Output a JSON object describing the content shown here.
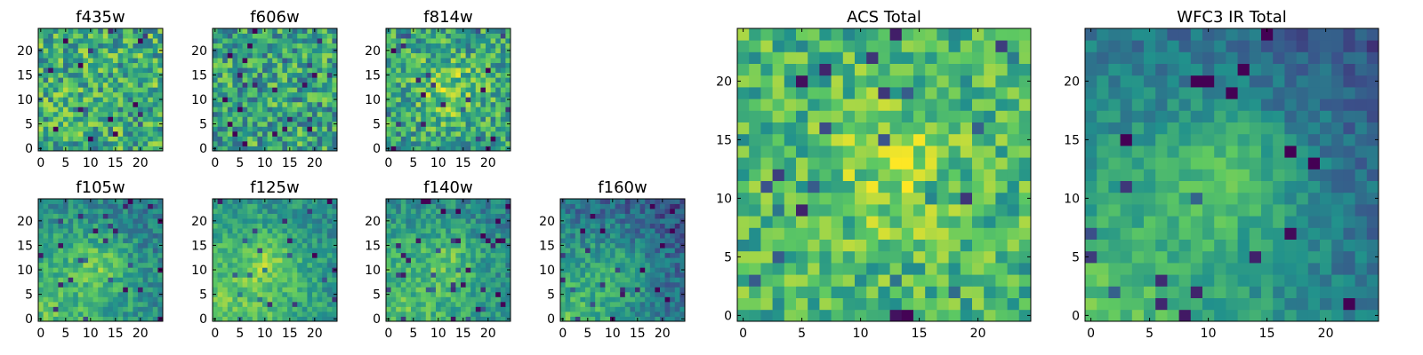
{
  "figure": {
    "background": "#ffffff",
    "colormap": [
      "#440154",
      "#3b528b",
      "#21918c",
      "#5ec962",
      "#fde725"
    ]
  },
  "chart_data": [
    {
      "type": "heatmap",
      "title": "f435w",
      "grid_size": 25,
      "xlim": [
        -0.5,
        24.5
      ],
      "ylim": [
        -0.5,
        24.5
      ],
      "xticks": [
        0,
        5,
        10,
        15,
        20
      ],
      "yticks": [
        0,
        5,
        10,
        15,
        20
      ],
      "xlabel": "",
      "ylabel": "",
      "description_of_values": "noisy, mostly green-yellow",
      "seed": 11,
      "base": 0.62,
      "noise": 0.55,
      "blob": null,
      "gradient": null
    },
    {
      "type": "heatmap",
      "title": "f606w",
      "grid_size": 25,
      "xlim": [
        -0.5,
        24.5
      ],
      "ylim": [
        -0.5,
        24.5
      ],
      "xticks": [
        0,
        5,
        10,
        15,
        20
      ],
      "yticks": [
        0,
        5,
        10,
        15,
        20
      ],
      "xlabel": "",
      "ylabel": "",
      "description_of_values": "noisy, mostly green",
      "seed": 23,
      "base": 0.58,
      "noise": 0.55,
      "blob": null,
      "gradient": null
    },
    {
      "type": "heatmap",
      "title": "f814w",
      "grid_size": 25,
      "xlim": [
        -0.5,
        24.5
      ],
      "ylim": [
        -0.5,
        24.5
      ],
      "xticks": [
        0,
        5,
        10,
        15,
        20
      ],
      "yticks": [
        0,
        5,
        10,
        15,
        20
      ],
      "xlabel": "",
      "ylabel": "",
      "description_of_values": "noisy with faint central brightening",
      "seed": 37,
      "base": 0.58,
      "noise": 0.5,
      "blob": [
        12,
        12,
        5,
        0.2
      ],
      "gradient": null
    },
    {
      "type": "heatmap",
      "title": "f105w",
      "grid_size": 25,
      "xlim": [
        -0.5,
        24.5
      ],
      "ylim": [
        -0.5,
        24.5
      ],
      "xticks": [
        0,
        5,
        10,
        15,
        20
      ],
      "yticks": [
        0,
        5,
        10,
        15,
        20
      ],
      "xlabel": "",
      "ylabel": "",
      "description_of_values": "bright lower-left, central feature",
      "seed": 41,
      "base": 0.55,
      "noise": 0.3,
      "blob": [
        12,
        11,
        4,
        0.18
      ],
      "gradient": [
        0.3,
        0.25
      ]
    },
    {
      "type": "heatmap",
      "title": "f125w",
      "grid_size": 25,
      "xlim": [
        -0.5,
        24.5
      ],
      "ylim": [
        -0.5,
        24.5
      ],
      "xticks": [
        0,
        5,
        10,
        15,
        20
      ],
      "yticks": [
        0,
        5,
        10,
        15,
        20
      ],
      "xlabel": "",
      "ylabel": "",
      "description_of_values": "bright lower-left, central feature",
      "seed": 53,
      "base": 0.6,
      "noise": 0.28,
      "blob": [
        11,
        11,
        4,
        0.18
      ],
      "gradient": [
        0.28,
        0.22
      ]
    },
    {
      "type": "heatmap",
      "title": "f140w",
      "grid_size": 25,
      "xlim": [
        -0.5,
        24.5
      ],
      "ylim": [
        -0.5,
        24.5
      ],
      "xticks": [
        0,
        5,
        10,
        15,
        20
      ],
      "yticks": [
        0,
        5,
        10,
        15,
        20
      ],
      "xlabel": "",
      "ylabel": "",
      "description_of_values": "bright lower-left, central feature",
      "seed": 67,
      "base": 0.58,
      "noise": 0.3,
      "blob": [
        12,
        12,
        4,
        0.15
      ],
      "gradient": [
        0.28,
        0.25
      ]
    },
    {
      "type": "heatmap",
      "title": "f160w",
      "grid_size": 25,
      "xlim": [
        -0.5,
        24.5
      ],
      "ylim": [
        -0.5,
        24.5
      ],
      "xticks": [
        0,
        5,
        10,
        15,
        20
      ],
      "yticks": [
        0,
        5,
        10,
        15,
        20
      ],
      "xlabel": "",
      "ylabel": "",
      "description_of_values": "bright lower-left corner, darker elsewhere",
      "seed": 79,
      "base": 0.42,
      "noise": 0.3,
      "blob": [
        11,
        11,
        4,
        0.12
      ],
      "gradient": [
        0.45,
        0.3
      ]
    },
    {
      "type": "heatmap",
      "title": "ACS Total",
      "grid_size": 25,
      "xlim": [
        -0.5,
        24.5
      ],
      "ylim": [
        -0.5,
        24.5
      ],
      "xticks": [
        0,
        5,
        10,
        15,
        20
      ],
      "yticks": [
        0,
        5,
        10,
        15,
        20
      ],
      "xlabel": "",
      "ylabel": "",
      "description_of_values": "mostly green-yellow with scattered dark pixels",
      "seed": 97,
      "base": 0.66,
      "noise": 0.42,
      "blob": [
        13,
        12,
        4,
        0.18
      ],
      "gradient": null
    },
    {
      "type": "heatmap",
      "title": "WFC3 IR Total",
      "grid_size": 25,
      "xlim": [
        -0.5,
        24.5
      ],
      "ylim": [
        -0.5,
        24.5
      ],
      "xticks": [
        0,
        5,
        10,
        15,
        20
      ],
      "yticks": [
        0,
        5,
        10,
        15,
        20
      ],
      "xlabel": "",
      "ylabel": "",
      "description_of_values": "bright lower-left, central blob, dark upper-right",
      "seed": 113,
      "base": 0.45,
      "noise": 0.22,
      "blob": [
        12,
        12,
        3.5,
        0.25
      ],
      "gradient": [
        0.45,
        0.3
      ]
    }
  ]
}
